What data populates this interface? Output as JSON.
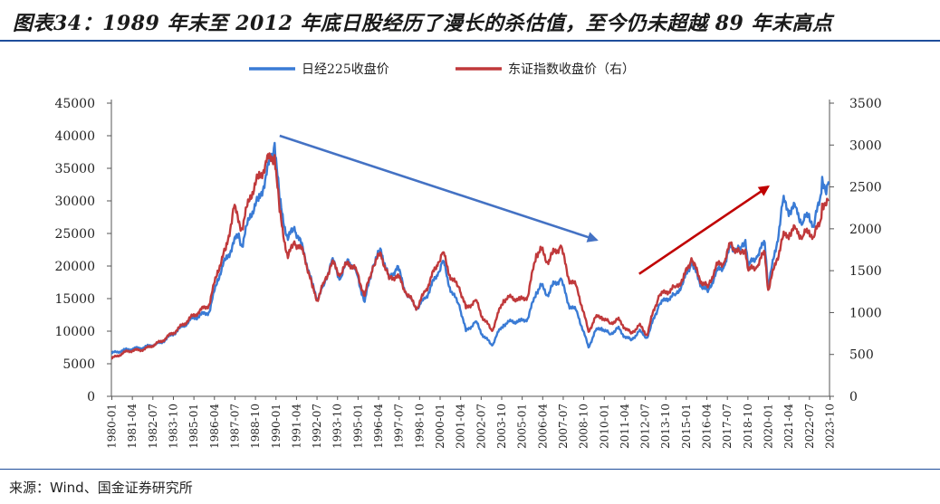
{
  "title": "图表34：1989 年末至 2012 年底日股经历了漫长的杀估值，至今仍未超越 89 年末高点",
  "source": "来源：Wind、国金证券研究所",
  "colors": {
    "nikkei": "#3a7bd5",
    "shanghai": "#c0393b",
    "arrow_down": "#4472c4",
    "arrow_up": "#c00000",
    "rule": "#1f4e9b"
  },
  "chart_data": {
    "type": "line",
    "x_tick_labels": [
      "1980-01",
      "1981-04",
      "1982-07",
      "1983-10",
      "1985-01",
      "1986-04",
      "1987-07",
      "1988-10",
      "1990-01",
      "1991-04",
      "1992-07",
      "1993-10",
      "1995-01",
      "1996-04",
      "1997-07",
      "1998-10",
      "2000-01",
      "2001-04",
      "2002-07",
      "2003-10",
      "2005-01",
      "2006-04",
      "2007-07",
      "2008-10",
      "2010-01",
      "2011-04",
      "2012-07",
      "2013-10",
      "2015-01",
      "2016-04",
      "2017-07",
      "2018-10",
      "2020-01",
      "2021-04",
      "2022-07",
      "2023-10"
    ],
    "y_left": {
      "ticks": [
        0,
        5000,
        10000,
        15000,
        20000,
        25000,
        30000,
        35000,
        40000,
        45000
      ],
      "ylim": [
        0,
        45000
      ]
    },
    "y_right": {
      "ticks": [
        0,
        500,
        1000,
        1500,
        2000,
        2500,
        3000,
        3500
      ],
      "ylim": [
        0,
        3500
      ]
    },
    "legend": [
      "日经225收盘价",
      "东证指数收盘价（右）"
    ],
    "legend_position": "top",
    "series": [
      {
        "name": "日经225收盘价",
        "axis": "left",
        "points": [
          [
            1980.0,
            6600
          ],
          [
            1981.0,
            7200
          ],
          [
            1982.0,
            7500
          ],
          [
            1983.0,
            8200
          ],
          [
            1984.0,
            10000
          ],
          [
            1985.0,
            12000
          ],
          [
            1986.0,
            13000
          ],
          [
            1986.5,
            18000
          ],
          [
            1987.0,
            21000
          ],
          [
            1987.8,
            25000
          ],
          [
            1988.0,
            23000
          ],
          [
            1988.5,
            28000
          ],
          [
            1989.0,
            30000
          ],
          [
            1989.5,
            34000
          ],
          [
            1989.99,
            38900
          ],
          [
            1990.3,
            30000
          ],
          [
            1990.8,
            24000
          ],
          [
            1991.2,
            26000
          ],
          [
            1991.8,
            22000
          ],
          [
            1992.3,
            17000
          ],
          [
            1992.6,
            15000
          ],
          [
            1993.0,
            17000
          ],
          [
            1993.5,
            21000
          ],
          [
            1994.0,
            18000
          ],
          [
            1994.5,
            21000
          ],
          [
            1995.0,
            19000
          ],
          [
            1995.5,
            14500
          ],
          [
            1996.0,
            20000
          ],
          [
            1996.5,
            22500
          ],
          [
            1997.0,
            18000
          ],
          [
            1997.5,
            20000
          ],
          [
            1998.0,
            16000
          ],
          [
            1998.7,
            13500
          ],
          [
            1999.2,
            15000
          ],
          [
            2000.0,
            19000
          ],
          [
            2000.3,
            20800
          ],
          [
            2000.8,
            16000
          ],
          [
            2001.3,
            14000
          ],
          [
            2001.7,
            10000
          ],
          [
            2002.3,
            11500
          ],
          [
            2002.7,
            9500
          ],
          [
            2003.3,
            7800
          ],
          [
            2003.6,
            9500
          ],
          [
            2004.0,
            11000
          ],
          [
            2004.5,
            11500
          ],
          [
            2005.0,
            11500
          ],
          [
            2005.5,
            12000
          ],
          [
            2006.0,
            16000
          ],
          [
            2006.3,
            17000
          ],
          [
            2006.7,
            15500
          ],
          [
            2007.0,
            17000
          ],
          [
            2007.5,
            18100
          ],
          [
            2008.0,
            14000
          ],
          [
            2008.5,
            13000
          ],
          [
            2009.2,
            7500
          ],
          [
            2009.6,
            10000
          ],
          [
            2010.0,
            10500
          ],
          [
            2010.5,
            9500
          ],
          [
            2011.0,
            10500
          ],
          [
            2011.3,
            9500
          ],
          [
            2011.8,
            8600
          ],
          [
            2012.3,
            10000
          ],
          [
            2012.8,
            9000
          ],
          [
            2013.0,
            10500
          ],
          [
            2013.5,
            14000
          ],
          [
            2014.0,
            15000
          ],
          [
            2014.5,
            15500
          ],
          [
            2015.0,
            17500
          ],
          [
            2015.5,
            20600
          ],
          [
            2016.0,
            17500
          ],
          [
            2016.5,
            16000
          ],
          [
            2017.0,
            19000
          ],
          [
            2017.5,
            20000
          ],
          [
            2017.9,
            22900
          ],
          [
            2018.5,
            22500
          ],
          [
            2018.8,
            24000
          ],
          [
            2018.99,
            20000
          ],
          [
            2019.5,
            21500
          ],
          [
            2019.99,
            23600
          ],
          [
            2020.2,
            17000
          ],
          [
            2020.7,
            23000
          ],
          [
            2021.1,
            30000
          ],
          [
            2021.5,
            28500
          ],
          [
            2021.9,
            29000
          ],
          [
            2022.3,
            26500
          ],
          [
            2022.7,
            28000
          ],
          [
            2022.99,
            26000
          ],
          [
            2023.4,
            30800
          ],
          [
            2023.5,
            33700
          ],
          [
            2023.75,
            31000
          ],
          [
            2023.9,
            33000
          ]
        ]
      },
      {
        "name": "东证指数收盘价（右）",
        "axis": "right",
        "points": [
          [
            1980.0,
            450
          ],
          [
            1981.0,
            540
          ],
          [
            1982.0,
            560
          ],
          [
            1983.0,
            650
          ],
          [
            1984.0,
            790
          ],
          [
            1985.0,
            960
          ],
          [
            1986.0,
            1100
          ],
          [
            1986.5,
            1500
          ],
          [
            1987.0,
            1750
          ],
          [
            1987.5,
            2250
          ],
          [
            1988.0,
            2000
          ],
          [
            1988.5,
            2400
          ],
          [
            1989.0,
            2600
          ],
          [
            1989.5,
            2800
          ],
          [
            1989.99,
            2880
          ],
          [
            1990.3,
            2200
          ],
          [
            1990.8,
            1650
          ],
          [
            1991.2,
            1850
          ],
          [
            1991.8,
            1700
          ],
          [
            1992.3,
            1300
          ],
          [
            1992.6,
            1150
          ],
          [
            1993.0,
            1350
          ],
          [
            1993.5,
            1600
          ],
          [
            1994.0,
            1450
          ],
          [
            1994.5,
            1600
          ],
          [
            1995.0,
            1500
          ],
          [
            1995.5,
            1200
          ],
          [
            1996.0,
            1550
          ],
          [
            1996.5,
            1700
          ],
          [
            1997.0,
            1400
          ],
          [
            1997.5,
            1450
          ],
          [
            1998.0,
            1250
          ],
          [
            1998.7,
            1050
          ],
          [
            1999.2,
            1250
          ],
          [
            2000.0,
            1600
          ],
          [
            2000.3,
            1720
          ],
          [
            2000.8,
            1400
          ],
          [
            2001.3,
            1300
          ],
          [
            2001.7,
            1050
          ],
          [
            2002.3,
            1150
          ],
          [
            2002.7,
            950
          ],
          [
            2003.3,
            780
          ],
          [
            2003.6,
            950
          ],
          [
            2004.0,
            1150
          ],
          [
            2004.5,
            1180
          ],
          [
            2005.0,
            1150
          ],
          [
            2005.5,
            1200
          ],
          [
            2006.0,
            1700
          ],
          [
            2006.3,
            1750
          ],
          [
            2006.7,
            1600
          ],
          [
            2007.0,
            1700
          ],
          [
            2007.5,
            1800
          ],
          [
            2008.0,
            1400
          ],
          [
            2008.5,
            1300
          ],
          [
            2009.2,
            770
          ],
          [
            2009.6,
            940
          ],
          [
            2010.0,
            950
          ],
          [
            2010.5,
            870
          ],
          [
            2011.0,
            920
          ],
          [
            2011.3,
            850
          ],
          [
            2011.8,
            750
          ],
          [
            2012.3,
            850
          ],
          [
            2012.8,
            730
          ],
          [
            2013.0,
            900
          ],
          [
            2013.5,
            1200
          ],
          [
            2014.0,
            1250
          ],
          [
            2014.5,
            1300
          ],
          [
            2015.0,
            1400
          ],
          [
            2015.5,
            1650
          ],
          [
            2016.0,
            1400
          ],
          [
            2016.5,
            1300
          ],
          [
            2017.0,
            1550
          ],
          [
            2017.5,
            1600
          ],
          [
            2017.9,
            1820
          ],
          [
            2018.5,
            1700
          ],
          [
            2018.8,
            1750
          ],
          [
            2018.99,
            1500
          ],
          [
            2019.5,
            1550
          ],
          [
            2019.99,
            1720
          ],
          [
            2020.2,
            1270
          ],
          [
            2020.7,
            1620
          ],
          [
            2021.1,
            1900
          ],
          [
            2021.5,
            1950
          ],
          [
            2021.9,
            2000
          ],
          [
            2022.3,
            1900
          ],
          [
            2022.7,
            1980
          ],
          [
            2022.99,
            1900
          ],
          [
            2023.4,
            2100
          ],
          [
            2023.5,
            2300
          ],
          [
            2023.75,
            2280
          ],
          [
            2023.9,
            2350
          ]
        ]
      }
    ],
    "annotations": [
      {
        "type": "arrow",
        "color": "blue",
        "from": [
          1990.3,
          40000
        ],
        "to": [
          2009.7,
          24000
        ],
        "axis": "left"
      },
      {
        "type": "arrow",
        "color": "red",
        "from": [
          2012.3,
          18800
        ],
        "to": [
          2020.2,
          32200
        ],
        "axis": "left"
      }
    ]
  }
}
